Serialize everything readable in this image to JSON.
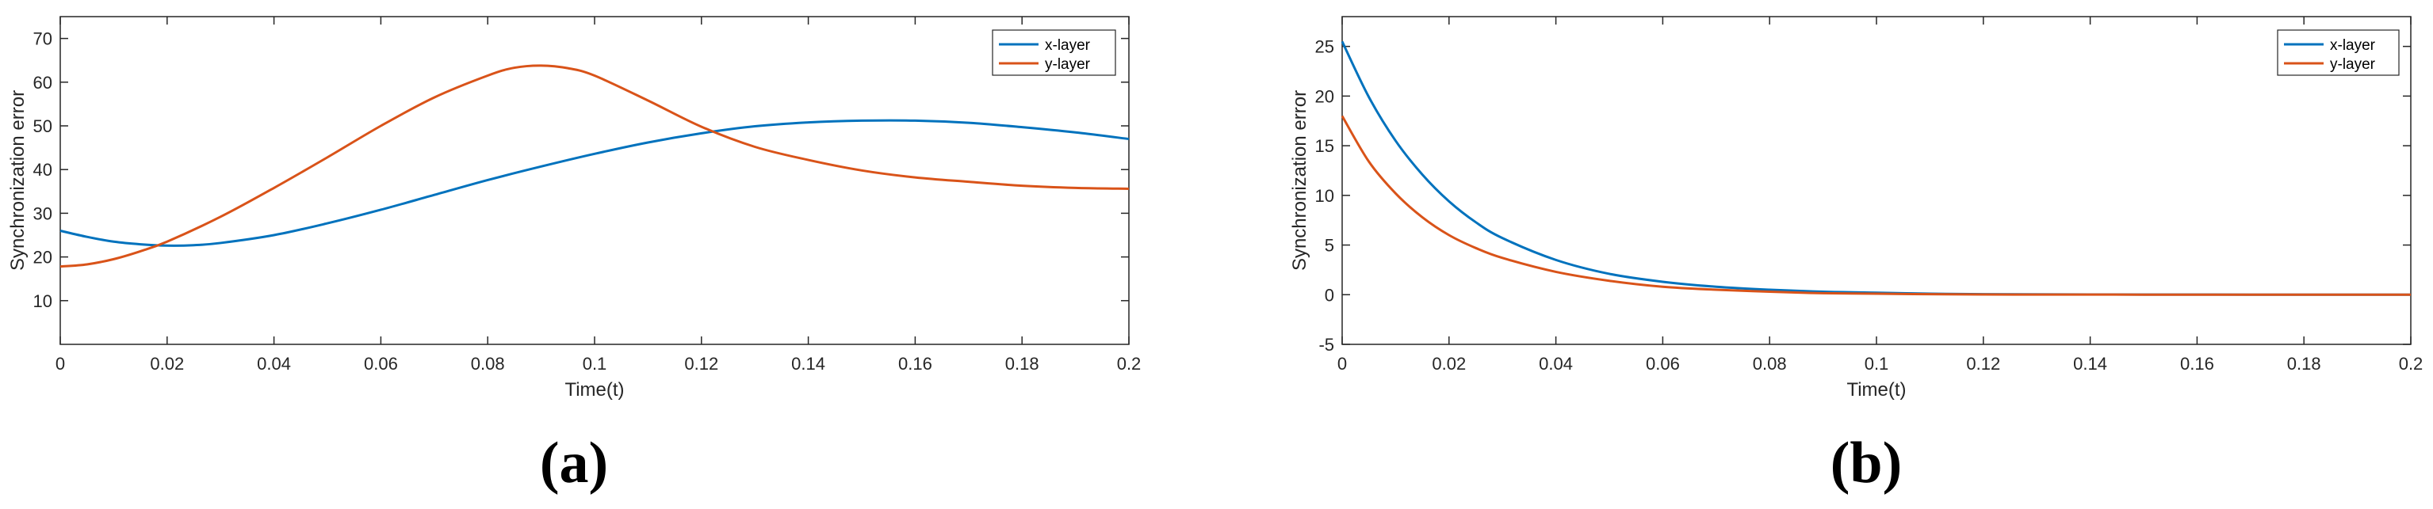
{
  "chart_data": [
    {
      "type": "line",
      "panel_label": "(a)",
      "title": "",
      "xlabel": "Time(t)",
      "ylabel": "Synchronization error",
      "xlim": [
        0,
        0.2
      ],
      "ylim": [
        0,
        75
      ],
      "xticks": [
        0,
        0.02,
        0.04,
        0.06,
        0.08,
        0.1,
        0.12,
        0.14,
        0.16,
        0.18,
        0.2
      ],
      "xtick_labels": [
        "0",
        "0.02",
        "0.04",
        "0.06",
        "0.08",
        "0.1",
        "0.12",
        "0.14",
        "0.16",
        "0.18",
        "0.2"
      ],
      "yticks": [
        10,
        20,
        30,
        40,
        50,
        60,
        70
      ],
      "ytick_labels": [
        "10",
        "20",
        "30",
        "40",
        "50",
        "60",
        "70"
      ],
      "grid": false,
      "legend_position": "top-right",
      "series": [
        {
          "name": "x-layer",
          "color": "#0072BD",
          "x": [
            0,
            0.005,
            0.01,
            0.015,
            0.02,
            0.025,
            0.03,
            0.04,
            0.05,
            0.06,
            0.07,
            0.08,
            0.09,
            0.1,
            0.11,
            0.12,
            0.13,
            0.14,
            0.15,
            0.16,
            0.17,
            0.18,
            0.19,
            0.2
          ],
          "y": [
            26,
            24.6,
            23.5,
            22.9,
            22.6,
            22.7,
            23.2,
            25.0,
            27.7,
            30.8,
            34.2,
            37.6,
            40.7,
            43.6,
            46.2,
            48.3,
            49.9,
            50.8,
            51.2,
            51.2,
            50.7,
            49.7,
            48.5,
            47
          ]
        },
        {
          "name": "y-layer",
          "color": "#D95319",
          "x": [
            0,
            0.005,
            0.01,
            0.015,
            0.02,
            0.03,
            0.04,
            0.05,
            0.06,
            0.07,
            0.08,
            0.085,
            0.09,
            0.095,
            0.1,
            0.11,
            0.12,
            0.13,
            0.14,
            0.15,
            0.16,
            0.17,
            0.18,
            0.19,
            0.2
          ],
          "y": [
            17.8,
            18.3,
            19.5,
            21.3,
            23.5,
            29.2,
            35.8,
            42.8,
            50.0,
            56.5,
            61.5,
            63.3,
            63.8,
            63.2,
            61.5,
            55.8,
            49.8,
            45.2,
            42.2,
            39.8,
            38.2,
            37.2,
            36.3,
            35.8,
            35.6
          ]
        }
      ]
    },
    {
      "type": "line",
      "panel_label": "(b)",
      "title": "",
      "xlabel": "Time(t)",
      "ylabel": "Synchronization error",
      "xlim": [
        0,
        0.2
      ],
      "ylim": [
        -5,
        28
      ],
      "xticks": [
        0,
        0.02,
        0.04,
        0.06,
        0.08,
        0.1,
        0.12,
        0.14,
        0.16,
        0.18,
        0.2
      ],
      "xtick_labels": [
        "0",
        "0.02",
        "0.04",
        "0.06",
        "0.08",
        "0.1",
        "0.12",
        "0.14",
        "0.16",
        "0.18",
        "0.2"
      ],
      "yticks": [
        -5,
        0,
        5,
        10,
        15,
        20,
        25
      ],
      "ytick_labels": [
        "-5",
        "0",
        "5",
        "10",
        "15",
        "20",
        "25"
      ],
      "grid": false,
      "legend_position": "top-right",
      "series": [
        {
          "name": "x-layer",
          "color": "#0072BD",
          "x": [
            0,
            0.005,
            0.01,
            0.015,
            0.02,
            0.025,
            0.03,
            0.04,
            0.05,
            0.06,
            0.07,
            0.08,
            0.09,
            0.1,
            0.11,
            0.12,
            0.14,
            0.16,
            0.18,
            0.2
          ],
          "y": [
            25.5,
            19.9,
            15.5,
            12.1,
            9.4,
            7.3,
            5.7,
            3.5,
            2.1,
            1.3,
            0.8,
            0.5,
            0.3,
            0.2,
            0.1,
            0.05,
            0.02,
            0.01,
            0,
            0
          ]
        },
        {
          "name": "y-layer",
          "color": "#D95319",
          "x": [
            0,
            0.005,
            0.01,
            0.015,
            0.02,
            0.025,
            0.03,
            0.04,
            0.05,
            0.06,
            0.07,
            0.08,
            0.09,
            0.1,
            0.11,
            0.12,
            0.14,
            0.16,
            0.18,
            0.2
          ],
          "y": [
            18,
            13.4,
            10.2,
            7.8,
            6.0,
            4.7,
            3.7,
            2.3,
            1.4,
            0.8,
            0.5,
            0.3,
            0.15,
            0.1,
            0.05,
            0.02,
            0.01,
            0,
            0,
            0
          ]
        }
      ]
    }
  ]
}
